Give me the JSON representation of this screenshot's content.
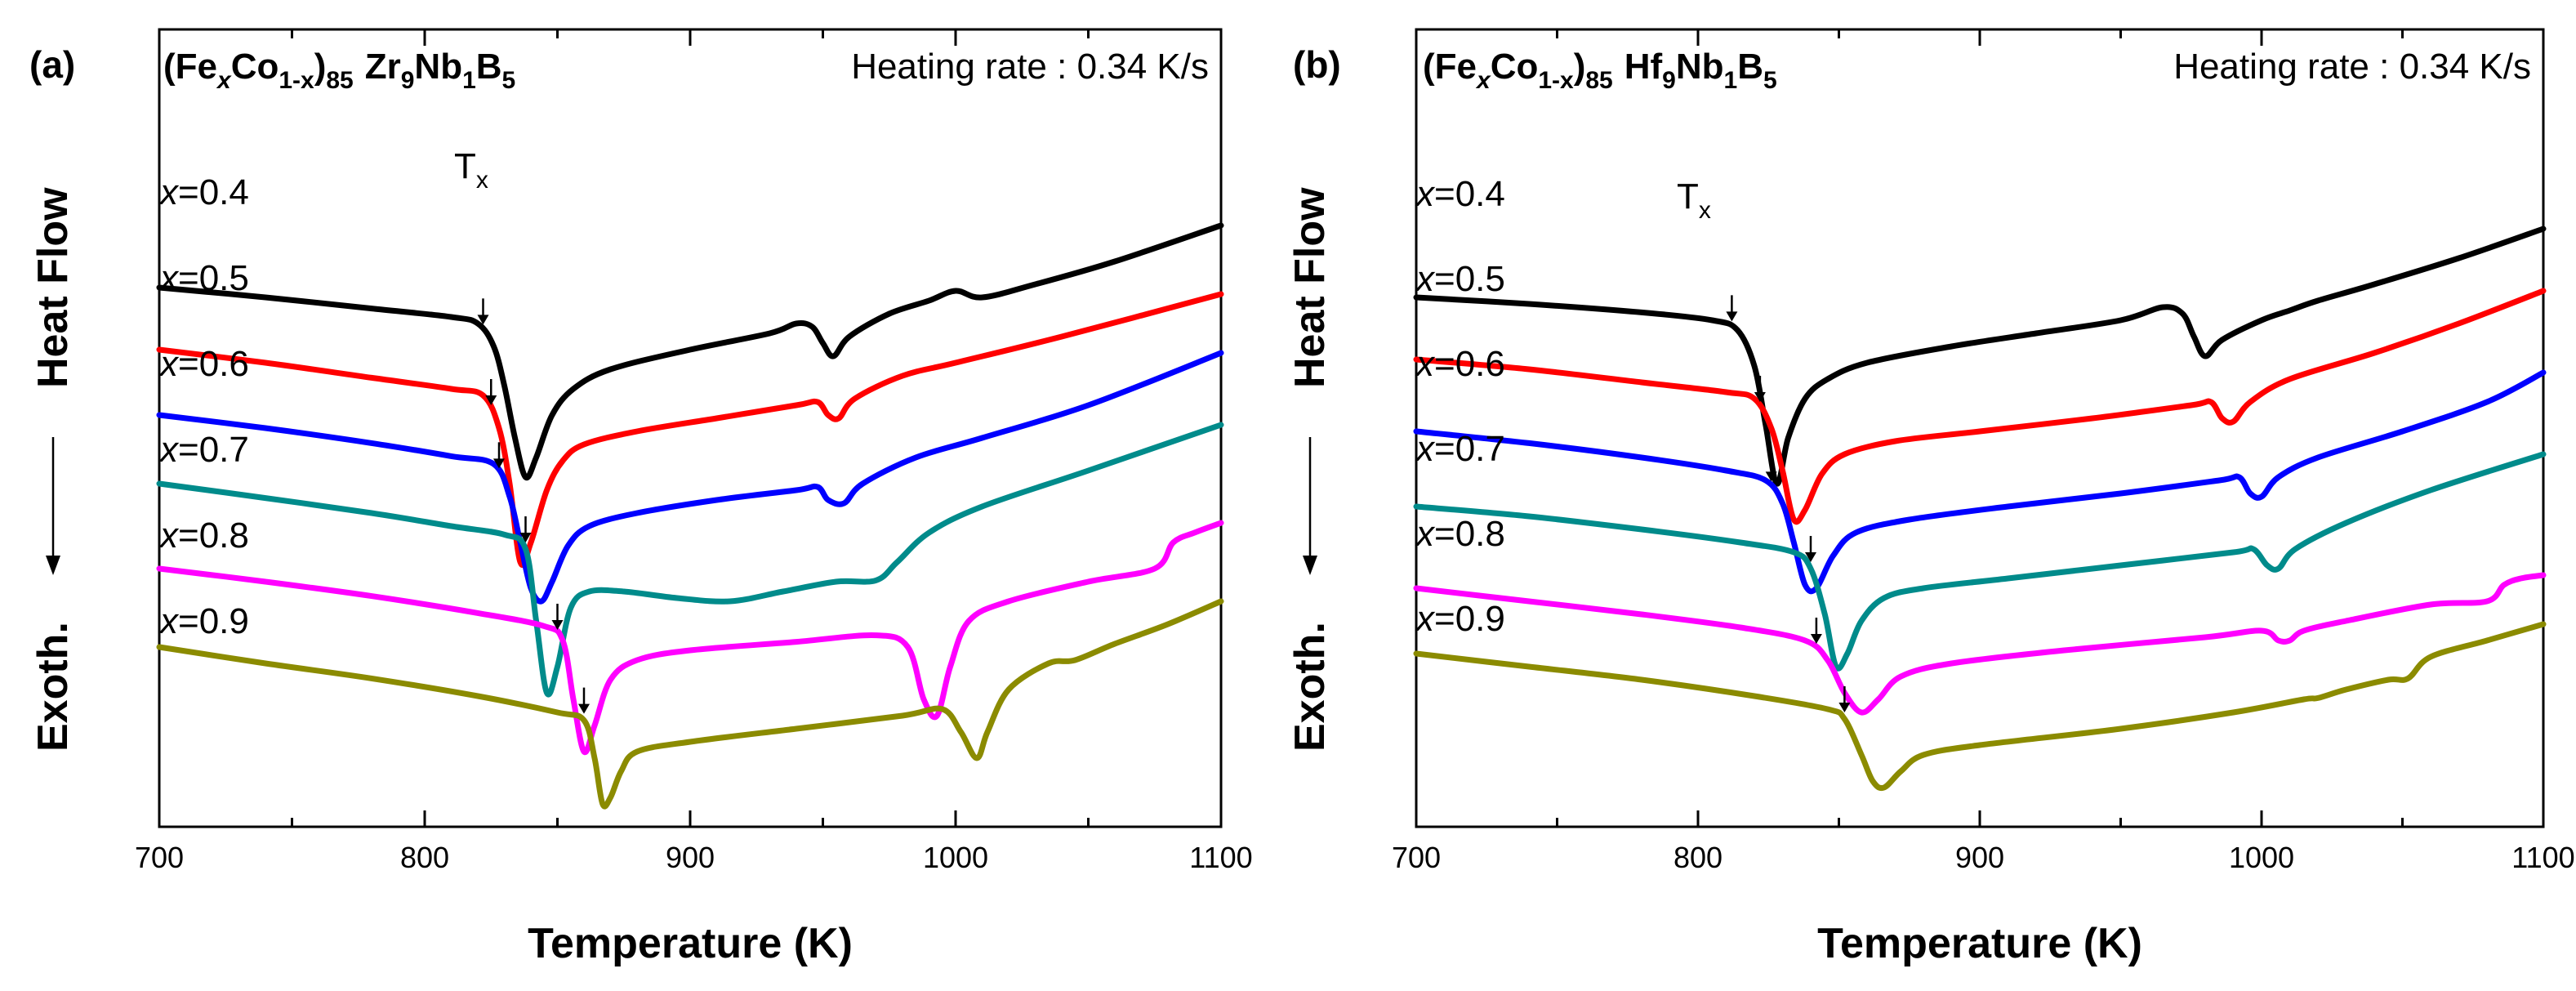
{
  "chart_data": [
    {
      "type": "line",
      "panel_label": "(a)",
      "title": {
        "prefix": "(Fe",
        "x1": "x",
        "mid": "Co",
        "sub1": "1-x",
        "close": ")",
        "sub85": "85",
        "element1": "Zr",
        "sub_element1": "9",
        "element2": "Nb",
        "sub_element2": "1",
        "element3": "B",
        "sub_element3": "5"
      },
      "annotation": "Heating rate : 0.34 K/s",
      "tx_label": "T",
      "tx_sub": "x",
      "xlabel": "Temperature (K)",
      "ylabel_top": "Heat Flow",
      "ylabel_bottom": "Exoth.",
      "xlim": [
        700,
        1100
      ],
      "ylim": [
        0,
        10
      ],
      "xticks": [
        700,
        800,
        900,
        1000,
        1100
      ],
      "xtick_labels": [
        "700",
        "800",
        "900",
        "1000",
        "1100"
      ],
      "yticks_shown": false,
      "legend_placement": "inline labels on left",
      "series": [
        {
          "name": "x=0.4",
          "label_x": "x",
          "label_rest": "=0.4",
          "color": "#000000",
          "tx": 822,
          "x": [
            700,
            740,
            780,
            810,
            820,
            826,
            830,
            834,
            838,
            842,
            848,
            856,
            870,
            900,
            930,
            940,
            946,
            950,
            954,
            960,
            975,
            990,
            1000,
            1010,
            1030,
            1060,
            1100
          ],
          "y": [
            8.1,
            7.95,
            7.78,
            7.65,
            7.55,
            7.2,
            6.6,
            5.8,
            5.2,
            5.5,
            6.15,
            6.55,
            6.85,
            7.15,
            7.4,
            7.55,
            7.5,
            7.25,
            7.05,
            7.35,
            7.7,
            7.9,
            8.05,
            7.95,
            8.15,
            8.5,
            9.05
          ]
        },
        {
          "name": "x=0.5",
          "label_x": "x",
          "label_rest": "=0.5",
          "color": "#ff0000",
          "tx": 825,
          "x": [
            700,
            740,
            780,
            810,
            822,
            828,
            832,
            836,
            840,
            846,
            852,
            860,
            880,
            910,
            940,
            948,
            952,
            956,
            962,
            980,
            1000,
            1040,
            1100
          ],
          "y": [
            7.15,
            6.95,
            6.72,
            6.55,
            6.45,
            5.95,
            5.1,
            3.9,
            4.2,
            5.0,
            5.45,
            5.7,
            5.9,
            6.1,
            6.3,
            6.35,
            6.15,
            6.1,
            6.4,
            6.75,
            6.95,
            7.35,
            8.0
          ]
        },
        {
          "name": "x=0.6",
          "label_x": "x",
          "label_rest": "=0.6",
          "color": "#0000ff",
          "tx": 828,
          "x": [
            700,
            740,
            780,
            810,
            826,
            832,
            836,
            840,
            844,
            848,
            854,
            862,
            880,
            910,
            940,
            948,
            952,
            958,
            965,
            985,
            1010,
            1050,
            1100
          ],
          "y": [
            6.15,
            5.95,
            5.72,
            5.52,
            5.4,
            4.9,
            4.2,
            3.5,
            3.3,
            3.6,
            4.15,
            4.45,
            4.65,
            4.85,
            5.0,
            5.05,
            4.85,
            4.8,
            5.1,
            5.5,
            5.8,
            6.3,
            7.1
          ]
        },
        {
          "name": "x=0.7",
          "label_x": "x",
          "label_rest": "=0.7",
          "color": "#008b8b",
          "tx": 838,
          "x": [
            700,
            740,
            780,
            810,
            830,
            838,
            842,
            846,
            850,
            855,
            862,
            875,
            895,
            915,
            935,
            955,
            970,
            978,
            990,
            1010,
            1050,
            1100
          ],
          "y": [
            5.1,
            4.88,
            4.65,
            4.45,
            4.32,
            4.1,
            3.0,
            1.9,
            2.3,
            3.2,
            3.45,
            3.45,
            3.35,
            3.3,
            3.45,
            3.6,
            3.62,
            3.9,
            4.35,
            4.75,
            5.3,
            6.0
          ]
        },
        {
          "name": "x=0.8",
          "label_x": "x",
          "label_rest": "=0.8",
          "color": "#ff00ff",
          "tx": 850,
          "x": [
            700,
            740,
            780,
            820,
            845,
            852,
            856,
            860,
            864,
            870,
            880,
            900,
            940,
            970,
            982,
            988,
            993,
            998,
            1005,
            1020,
            1050,
            1075,
            1082,
            1090,
            1100
          ],
          "y": [
            3.8,
            3.6,
            3.38,
            3.12,
            2.92,
            2.7,
            1.8,
            1.0,
            1.4,
            2.1,
            2.4,
            2.55,
            2.68,
            2.78,
            2.6,
            1.8,
            1.55,
            2.3,
            3.0,
            3.3,
            3.6,
            3.8,
            4.2,
            4.35,
            4.5
          ]
        },
        {
          "name": "x=0.9",
          "label_x": "x",
          "label_rest": "=0.9",
          "color": "#8b8b00",
          "tx": 860,
          "x": [
            700,
            740,
            780,
            820,
            850,
            860,
            864,
            867,
            870,
            874,
            880,
            900,
            940,
            980,
            995,
            1002,
            1008,
            1012,
            1020,
            1035,
            1045,
            1060,
            1080,
            1100
          ],
          "y": [
            2.6,
            2.35,
            2.12,
            1.85,
            1.6,
            1.48,
            0.9,
            0.2,
            0.3,
            0.7,
            1.0,
            1.15,
            1.35,
            1.55,
            1.65,
            1.3,
            0.9,
            1.3,
            1.95,
            2.35,
            2.4,
            2.65,
            2.95,
            3.3
          ]
        }
      ]
    },
    {
      "type": "line",
      "panel_label": "(b)",
      "title": {
        "prefix": "(Fe",
        "x1": "x",
        "mid": "Co",
        "sub1": "1-x",
        "close": ")",
        "sub85": "85",
        "element1": "Hf",
        "sub_element1": "9",
        "element2": "Nb",
        "sub_element2": "1",
        "element3": "B",
        "sub_element3": "5"
      },
      "annotation": "Heating rate : 0.34 K/s",
      "tx_label": "T",
      "tx_sub": "x",
      "xlabel": "Temperature (K)",
      "ylabel_top": "Heat Flow",
      "ylabel_bottom": "Exoth.",
      "xlim": [
        700,
        1100
      ],
      "ylim": [
        0,
        10
      ],
      "xticks": [
        700,
        800,
        900,
        1000,
        1100
      ],
      "xtick_labels": [
        "700",
        "800",
        "900",
        "1000",
        "1100"
      ],
      "yticks_shown": false,
      "legend_placement": "inline labels on left",
      "series": [
        {
          "name": "x=0.4",
          "label_x": "x",
          "label_rest": "=0.4",
          "color": "#000000",
          "tx": 812,
          "x": [
            700,
            740,
            780,
            805,
            814,
            820,
            824,
            828,
            832,
            838,
            846,
            860,
            890,
            920,
            950,
            965,
            972,
            976,
            980,
            986,
            1000,
            1010,
            1020,
            1040,
            1070,
            1100
          ],
          "y": [
            7.95,
            7.85,
            7.72,
            7.6,
            7.45,
            6.9,
            6.0,
            5.1,
            5.8,
            6.4,
            6.7,
            6.95,
            7.2,
            7.4,
            7.6,
            7.8,
            7.7,
            7.35,
            7.05,
            7.3,
            7.6,
            7.75,
            7.9,
            8.15,
            8.55,
            9.0
          ]
        },
        {
          "name": "x=0.5",
          "label_x": "x",
          "label_rest": "=0.5",
          "color": "#ff0000",
          "tx": 822,
          "x": [
            700,
            740,
            780,
            810,
            820,
            826,
            830,
            834,
            838,
            844,
            852,
            870,
            900,
            940,
            975,
            982,
            986,
            990,
            996,
            1010,
            1040,
            1070,
            1100
          ],
          "y": [
            7.0,
            6.85,
            6.65,
            6.5,
            6.4,
            5.95,
            5.3,
            4.55,
            4.7,
            5.25,
            5.55,
            5.75,
            5.9,
            6.1,
            6.3,
            6.35,
            6.1,
            6.05,
            6.35,
            6.7,
            7.1,
            7.55,
            8.05
          ]
        },
        {
          "name": "x=0.6",
          "label_x": "x",
          "label_rest": "=0.6",
          "color": "#0000ff",
          "tx": 826,
          "x": [
            700,
            740,
            780,
            810,
            824,
            830,
            834,
            838,
            842,
            848,
            856,
            875,
            910,
            950,
            985,
            992,
            996,
            1000,
            1006,
            1020,
            1050,
            1080,
            1100
          ],
          "y": [
            5.9,
            5.72,
            5.5,
            5.3,
            5.15,
            4.8,
            4.2,
            3.55,
            3.5,
            4.0,
            4.35,
            4.55,
            4.75,
            4.95,
            5.15,
            5.2,
            4.95,
            4.9,
            5.2,
            5.5,
            5.9,
            6.35,
            6.8
          ]
        },
        {
          "name": "x=0.7",
          "label_x": "x",
          "label_rest": "=0.7",
          "color": "#008b8b",
          "tx": 840,
          "x": [
            700,
            740,
            780,
            815,
            834,
            840,
            845,
            849,
            853,
            858,
            866,
            880,
            910,
            950,
            990,
            997,
            1002,
            1006,
            1012,
            1030,
            1060,
            1100
          ],
          "y": [
            4.75,
            4.6,
            4.4,
            4.2,
            4.05,
            3.8,
            3.1,
            2.3,
            2.5,
            3.0,
            3.35,
            3.5,
            3.65,
            3.85,
            4.05,
            4.1,
            3.85,
            3.8,
            4.1,
            4.5,
            5.0,
            5.55
          ]
        },
        {
          "name": "x=0.8",
          "label_x": "x",
          "label_rest": "=0.8",
          "color": "#ff00ff",
          "tx": 842,
          "x": [
            700,
            740,
            780,
            815,
            838,
            846,
            852,
            858,
            864,
            872,
            890,
            930,
            980,
            1000,
            1006,
            1010,
            1015,
            1030,
            1060,
            1080,
            1086,
            1092,
            1100
          ],
          "y": [
            3.5,
            3.3,
            3.1,
            2.9,
            2.7,
            2.4,
            1.9,
            1.6,
            1.8,
            2.15,
            2.35,
            2.55,
            2.75,
            2.85,
            2.7,
            2.7,
            2.85,
            3.0,
            3.25,
            3.3,
            3.55,
            3.65,
            3.7
          ]
        },
        {
          "name": "x=0.9",
          "label_x": "x",
          "label_rest": "=0.9",
          "color": "#8b8b00",
          "tx": 852,
          "x": [
            700,
            740,
            780,
            820,
            846,
            852,
            858,
            862,
            866,
            872,
            880,
            900,
            950,
            990,
            1015,
            1020,
            1030,
            1045,
            1052,
            1060,
            1080,
            1100
          ],
          "y": [
            2.5,
            2.3,
            2.1,
            1.85,
            1.65,
            1.5,
            0.95,
            0.55,
            0.45,
            0.7,
            0.95,
            1.1,
            1.35,
            1.6,
            1.8,
            1.82,
            1.95,
            2.1,
            2.12,
            2.45,
            2.7,
            2.95
          ]
        }
      ]
    }
  ]
}
